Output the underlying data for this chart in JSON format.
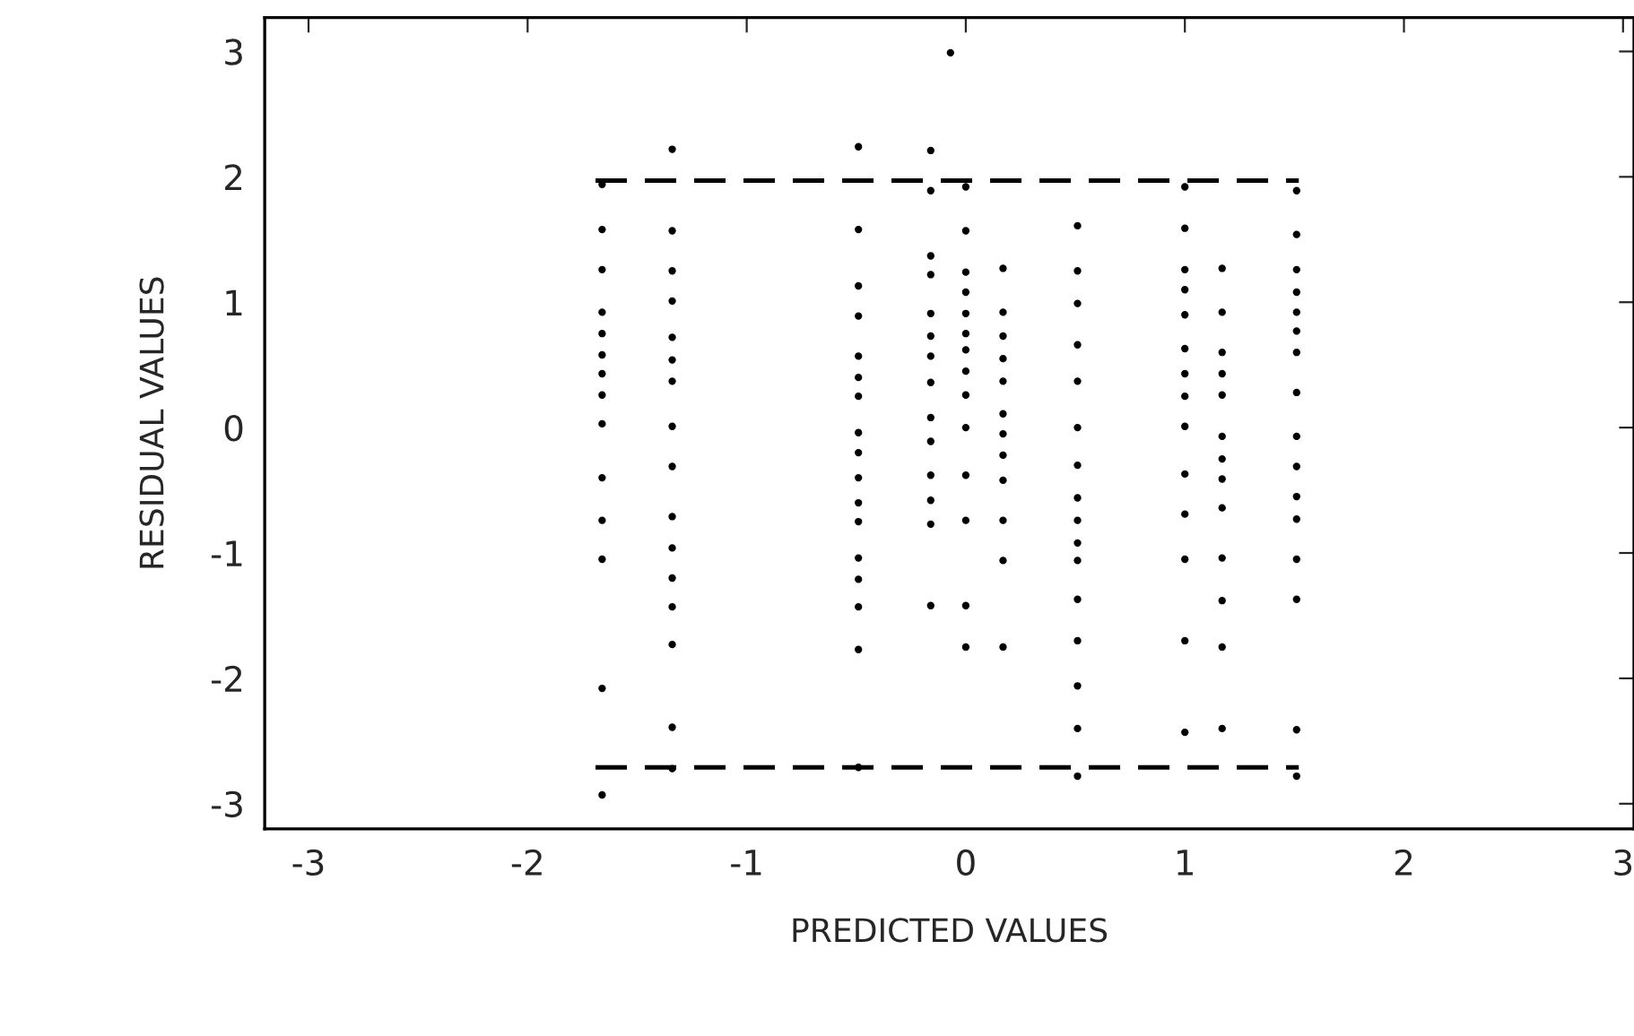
{
  "chart_data": {
    "type": "scatter",
    "xlabel": "PREDICTED VALUES",
    "ylabel": "RESIDUAL VALUES",
    "xlim": [
      -3.2,
      3.05
    ],
    "ylim": [
      -3.2,
      3.27
    ],
    "xticks": [
      -3,
      -2,
      -1,
      0,
      1,
      2,
      3
    ],
    "yticks": [
      -3,
      -2,
      -1,
      0,
      1,
      2,
      3
    ],
    "grid": false,
    "legend": false,
    "series": [
      {
        "marker": "circle",
        "color": "#000000",
        "x": [
          -1.66,
          -1.66,
          -1.66,
          -1.66,
          -1.66,
          -1.66,
          -1.66,
          -1.66,
          -1.66,
          -1.66,
          -1.66,
          -1.66,
          -1.66,
          -1.66,
          -1.34,
          -1.34,
          -1.34,
          -1.34,
          -1.34,
          -1.34,
          -1.34,
          -1.34,
          -1.34,
          -1.34,
          -1.34,
          -1.34,
          -1.34,
          -1.34,
          -1.34,
          -1.34,
          -0.49,
          -0.49,
          -0.49,
          -0.49,
          -0.49,
          -0.49,
          -0.49,
          -0.49,
          -0.49,
          -0.49,
          -0.49,
          -0.49,
          -0.49,
          -0.49,
          -0.49,
          -0.49,
          -0.49,
          -0.16,
          -0.16,
          -0.16,
          -0.16,
          -0.16,
          -0.16,
          -0.16,
          -0.16,
          -0.16,
          -0.16,
          -0.16,
          -0.16,
          -0.16,
          -0.16,
          0,
          0,
          0,
          0,
          0,
          0,
          0,
          0,
          0,
          0,
          0,
          0,
          0,
          0,
          0.17,
          0.17,
          0.17,
          0.17,
          0.17,
          0.17,
          0.17,
          0.17,
          0.17,
          0.17,
          0.17,
          0.17,
          0.51,
          0.51,
          0.51,
          0.51,
          0.51,
          0.51,
          0.51,
          0.51,
          0.51,
          0.51,
          0.51,
          0.51,
          0.51,
          0.51,
          0.51,
          0.51,
          1.0,
          1.0,
          1.0,
          1.0,
          1.0,
          1.0,
          1.0,
          1.0,
          1.0,
          1.0,
          1.0,
          1.0,
          1.0,
          1.0,
          1.17,
          1.17,
          1.17,
          1.17,
          1.17,
          1.17,
          1.17,
          1.17,
          1.17,
          1.17,
          1.17,
          1.17,
          1.17,
          1.51,
          1.51,
          1.51,
          1.51,
          1.51,
          1.51,
          1.51,
          1.51,
          1.51,
          1.51,
          1.51,
          1.51,
          1.51,
          1.51,
          1.51,
          1.51,
          -0.07
        ],
        "values": [
          1.94,
          1.58,
          1.26,
          0.92,
          0.75,
          0.58,
          0.43,
          0.26,
          0.03,
          -0.4,
          -0.74,
          -1.05,
          -2.08,
          -2.93,
          2.22,
          1.57,
          1.25,
          1.01,
          0.72,
          0.54,
          0.37,
          0.01,
          -0.31,
          -0.71,
          -0.96,
          -1.2,
          -1.43,
          -1.73,
          -2.39,
          -2.72,
          2.24,
          1.58,
          1.13,
          0.89,
          0.57,
          0.4,
          0.25,
          -0.04,
          -0.2,
          -0.4,
          -0.6,
          -0.75,
          -1.04,
          -1.21,
          -1.43,
          -1.77,
          -2.71,
          2.21,
          1.89,
          1.37,
          1.22,
          0.91,
          0.73,
          0.57,
          0.36,
          0.08,
          -0.11,
          -0.38,
          -0.58,
          -0.77,
          -1.42,
          1.92,
          1.57,
          1.24,
          1.08,
          0.91,
          0.75,
          0.62,
          0.45,
          0.26,
          0.0,
          -0.38,
          -0.74,
          -1.42,
          -1.75,
          1.27,
          0.92,
          0.73,
          0.55,
          0.37,
          0.11,
          -0.05,
          -0.22,
          -0.42,
          -0.74,
          -1.06,
          -1.75,
          1.61,
          1.25,
          0.99,
          0.66,
          0.37,
          0.0,
          -0.3,
          -0.56,
          -0.74,
          -0.92,
          -1.06,
          -1.37,
          -1.7,
          -2.06,
          -2.4,
          -2.78,
          1.92,
          1.59,
          1.26,
          1.1,
          0.9,
          0.63,
          0.43,
          0.25,
          0.01,
          -0.37,
          -0.69,
          -1.05,
          -1.7,
          -2.43,
          1.27,
          0.92,
          0.6,
          0.43,
          0.26,
          -0.07,
          -0.25,
          -0.41,
          -0.64,
          -1.04,
          -1.38,
          -1.75,
          -2.4,
          1.89,
          1.54,
          1.26,
          1.08,
          0.92,
          0.77,
          0.6,
          0.28,
          -0.07,
          -0.31,
          -0.55,
          -0.73,
          -1.05,
          -1.37,
          -2.41,
          -2.78,
          2.99
        ]
      },
      {
        "type": "line",
        "color": "#000000",
        "line_style": "dashed",
        "marker": "none",
        "x": [
          -1.69,
          1.52
        ],
        "values": [
          1.97,
          1.97
        ]
      },
      {
        "type": "line",
        "color": "#000000",
        "line_style": "dashed",
        "marker": "none",
        "x": [
          -1.69,
          1.52
        ],
        "values": [
          -2.71,
          -2.71
        ]
      }
    ]
  }
}
